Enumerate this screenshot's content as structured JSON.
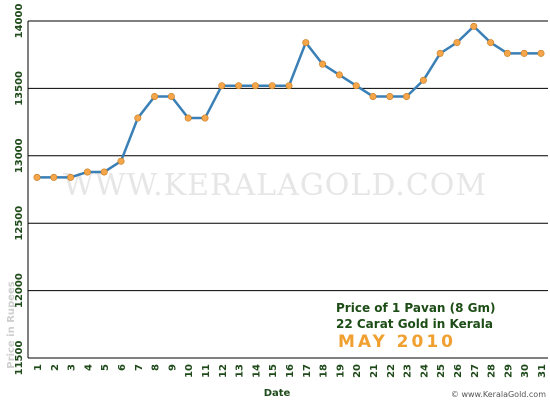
{
  "chart_data": {
    "type": "line",
    "title_lines": [
      "Price of 1 Pavan (8 Gm)",
      "22 Carat Gold in Kerala"
    ],
    "subtitle": "MAY 2010",
    "xlabel": "Date",
    "ylabel": "Price in Rupees",
    "watermark": "WWW.KERALAGOLD.COM",
    "credit": "© www.KeralaGold.com",
    "categories": [
      "1",
      "2",
      "3",
      "4",
      "5",
      "6",
      "7",
      "8",
      "9",
      "10",
      "11",
      "12",
      "13",
      "14",
      "15",
      "16",
      "17",
      "18",
      "19",
      "20",
      "21",
      "22",
      "23",
      "24",
      "25",
      "26",
      "27",
      "28",
      "29",
      "30",
      "31"
    ],
    "values": [
      12840,
      12840,
      12840,
      12880,
      12880,
      12960,
      13280,
      13440,
      13440,
      13280,
      13280,
      13520,
      13520,
      13520,
      13520,
      13520,
      13840,
      13680,
      13600,
      13520,
      13440,
      13440,
      13440,
      13560,
      13760,
      13840,
      13960,
      13840,
      13760,
      13760,
      13760
    ],
    "color": "#3a7fb5",
    "marker_color": "#f5a64a",
    "ylim": [
      11500,
      14000
    ],
    "yticks": [
      11500,
      12000,
      12500,
      13000,
      13500,
      14000
    ],
    "grid": true
  }
}
